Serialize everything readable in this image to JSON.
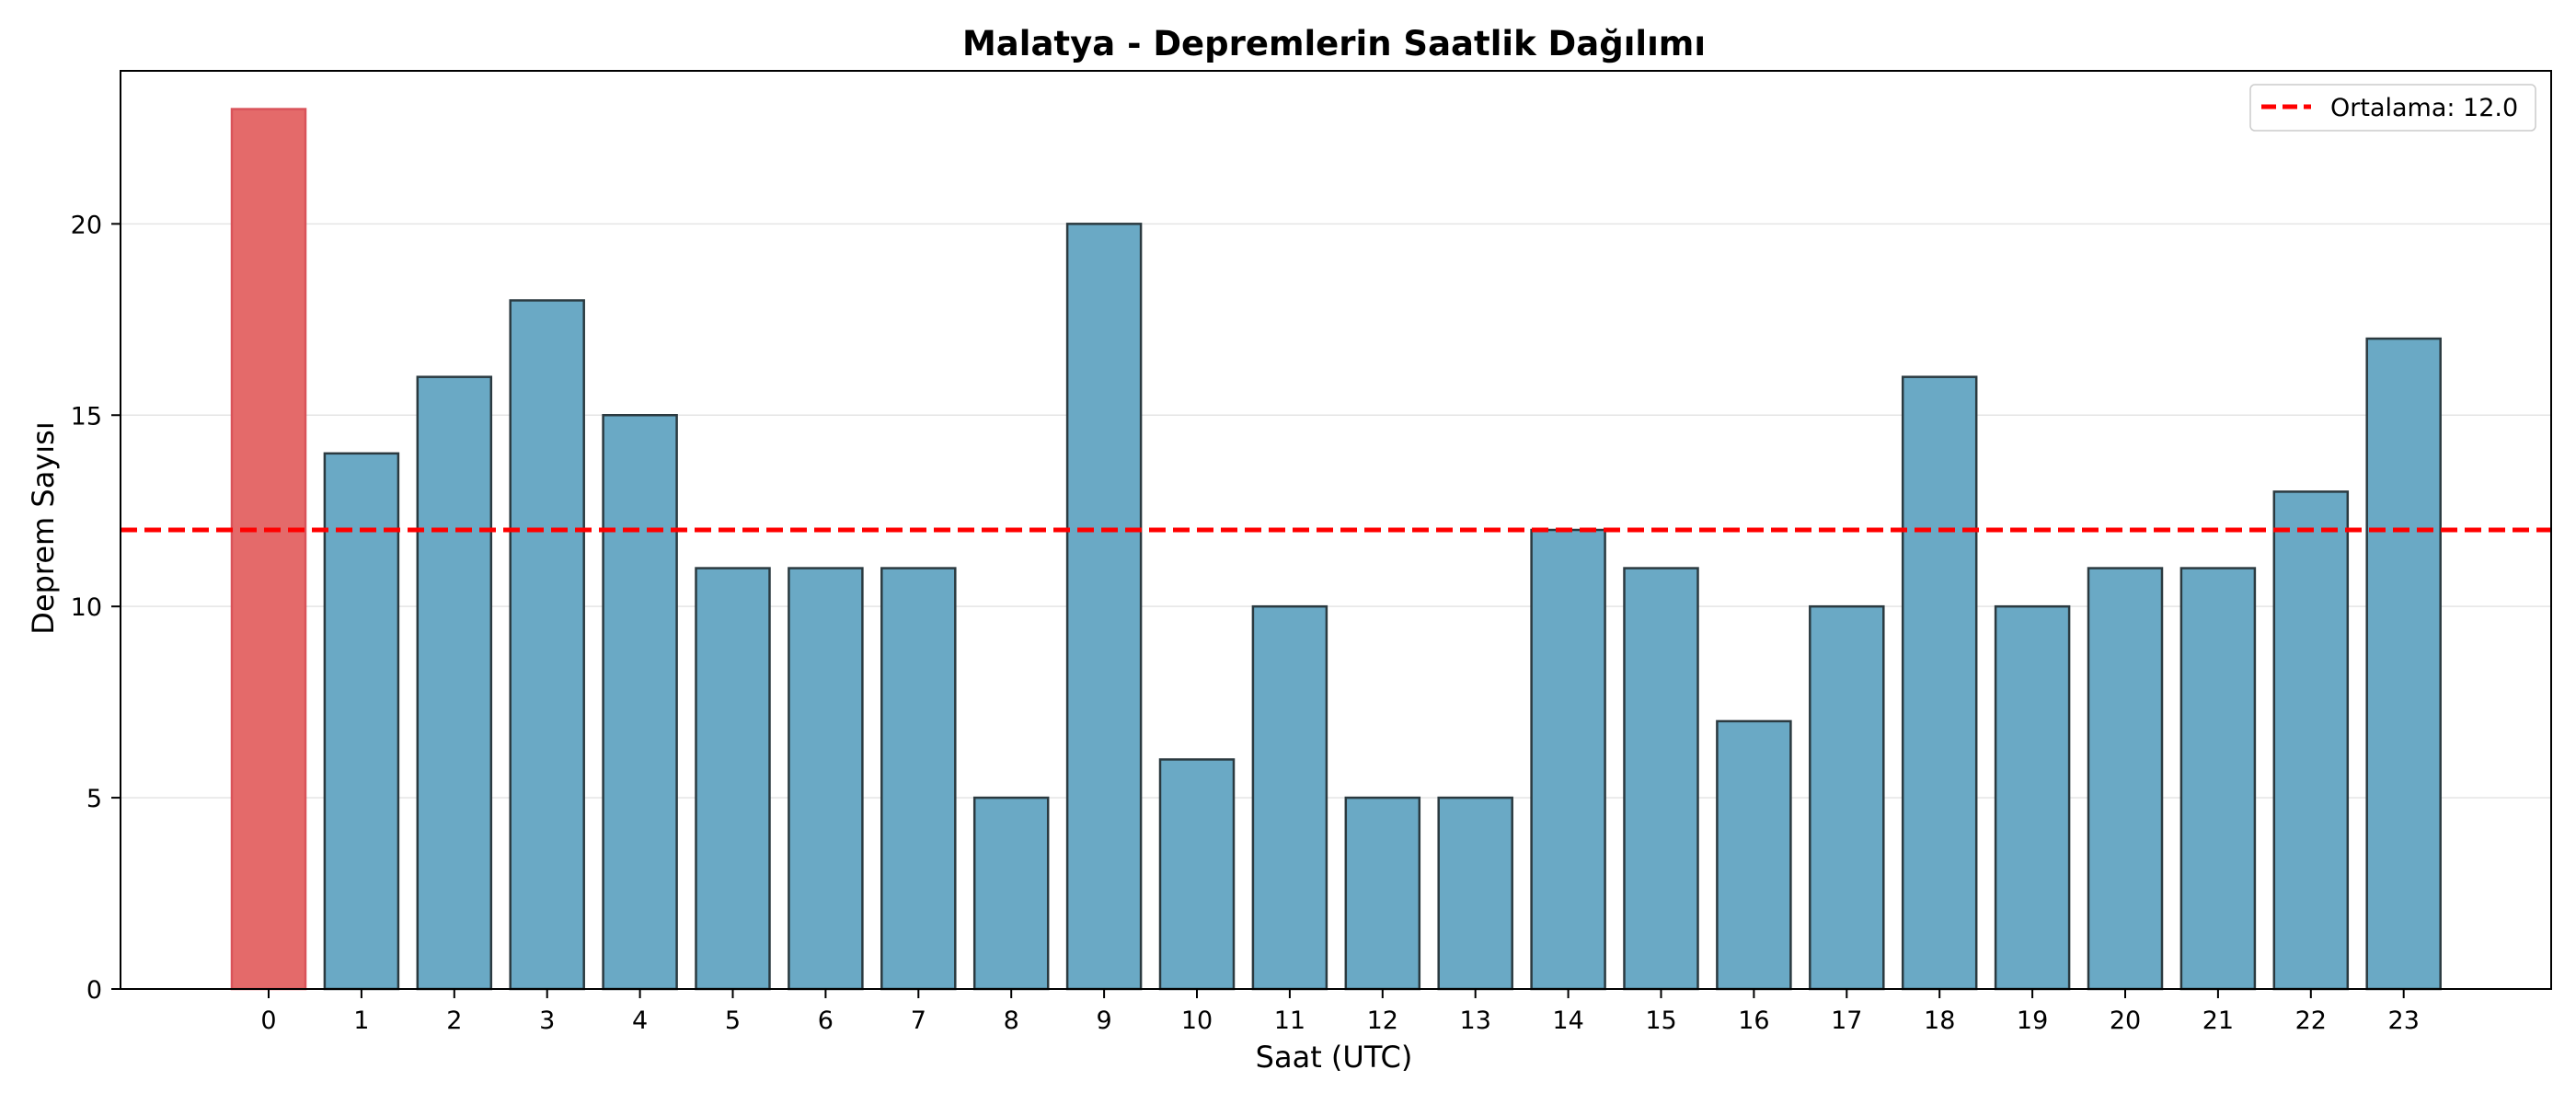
{
  "chart_data": {
    "type": "bar",
    "title": "Malatya - Depremlerin Saatlik Dağılımı",
    "xlabel": "Saat (UTC)",
    "ylabel": "Deprem Sayısı",
    "categories": [
      "0",
      "1",
      "2",
      "3",
      "4",
      "5",
      "6",
      "7",
      "8",
      "9",
      "10",
      "11",
      "12",
      "13",
      "14",
      "15",
      "16",
      "17",
      "18",
      "19",
      "20",
      "21",
      "22",
      "23"
    ],
    "values": [
      23,
      14,
      16,
      18,
      15,
      11,
      11,
      11,
      5,
      20,
      6,
      10,
      5,
      5,
      12,
      11,
      7,
      10,
      16,
      10,
      11,
      11,
      13,
      17
    ],
    "highlight_index": 0,
    "ylim": [
      0,
      24
    ],
    "yticks": [
      0,
      5,
      10,
      15,
      20
    ],
    "mean_line": {
      "value": 12.0,
      "label": "Ortalama: 12.0",
      "color": "#ff0000",
      "style": "dashed"
    },
    "legend_position": "top-right",
    "grid": "horizontal",
    "colors": {
      "bar": "#6aa9c5",
      "bar_edge": "#2b3a40",
      "highlight": "#e46a6a",
      "highlight_edge": "#d9535a",
      "grid": "#e4e4e4"
    }
  }
}
